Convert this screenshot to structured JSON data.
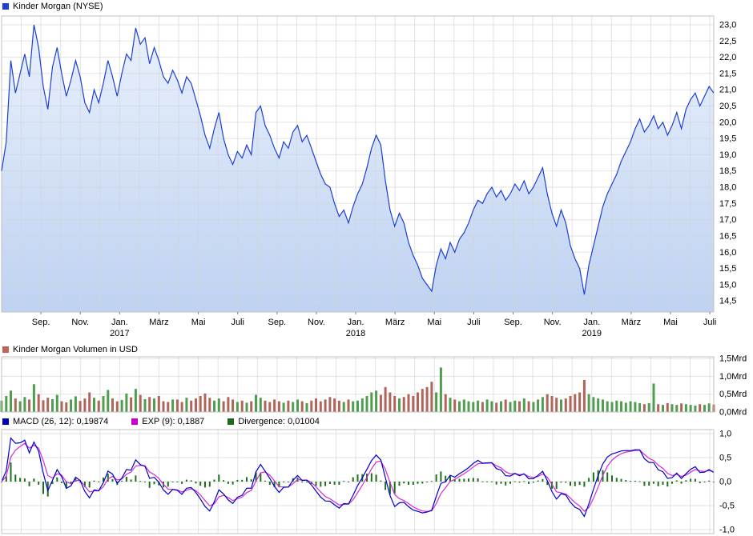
{
  "price_section": {
    "title": "Kinder Morgan (NYSE)"
  },
  "volume_section": {
    "title": "Kinder Morgan Volumen in USD"
  },
  "macd_section": {
    "macd_label": "MACD (26, 12): 0,19874",
    "exp_label": "EXP (9): 0,1887",
    "divergence_label": "Divergence: 0,01004"
  },
  "colors": {
    "price_line": "#1c3fd4",
    "price_marker": "#1c3fd4",
    "price_fill_top": "#eaf1fc",
    "price_fill_bottom": "#bed2f2",
    "grid": "#d4d4d4",
    "border": "#c0c0c0",
    "tick": "#808080",
    "volume_marker": "#c0645a",
    "volume_up": "#4f9d4f",
    "volume_down": "#b0645a",
    "macd_line": "#0000cc",
    "signal_line": "#d42bd4",
    "divergence_bar": "#1c701c",
    "macd_marker": "#0000bb",
    "exp_marker": "#cc00cc",
    "divergence_marker": "#1a6b1a"
  },
  "chart_data": [
    {
      "type": "area",
      "title": "Kinder Morgan (NYSE)",
      "ylabel": "",
      "ylim": [
        14.5,
        23.0
      ],
      "months_total": 36.2,
      "y_tick_values": [
        23.0,
        22.5,
        22.0,
        21.5,
        21.0,
        20.5,
        20.0,
        19.5,
        19.0,
        18.5,
        18.0,
        17.5,
        17.0,
        16.5,
        16.0,
        15.5,
        15.0,
        14.5
      ],
      "y_tick_labels": [
        "23,0",
        "22,5",
        "22,0",
        "21,5",
        "21,0",
        "20,5",
        "20,0",
        "19,5",
        "19,0",
        "18,5",
        "18,0",
        "17,5",
        "17,0",
        "16,5",
        "16,0",
        "15,5",
        "15,0",
        "14,5"
      ],
      "x_ticks": [
        {
          "m": 2,
          "label": "Sep."
        },
        {
          "m": 4,
          "label": "Nov."
        },
        {
          "m": 6,
          "label": "Jan."
        },
        {
          "m": 8,
          "label": "März"
        },
        {
          "m": 10,
          "label": "Mai"
        },
        {
          "m": 12,
          "label": "Juli"
        },
        {
          "m": 14,
          "label": "Sep."
        },
        {
          "m": 16,
          "label": "Nov."
        },
        {
          "m": 18,
          "label": "Jan."
        },
        {
          "m": 20,
          "label": "März"
        },
        {
          "m": 22,
          "label": "Mai"
        },
        {
          "m": 24,
          "label": "Juli"
        },
        {
          "m": 26,
          "label": "Sep."
        },
        {
          "m": 28,
          "label": "Nov."
        },
        {
          "m": 30,
          "label": "Jan."
        },
        {
          "m": 32,
          "label": "März"
        },
        {
          "m": 34,
          "label": "Mai"
        },
        {
          "m": 36,
          "label": "Juli"
        }
      ],
      "year_ticks": [
        {
          "m": 6,
          "label": "2017"
        },
        {
          "m": 18,
          "label": "2018"
        },
        {
          "m": 30,
          "label": "2019"
        }
      ],
      "values": [
        18.5,
        19.4,
        21.9,
        20.9,
        21.5,
        22.1,
        21.4,
        23.0,
        22.3,
        21.1,
        20.4,
        21.7,
        22.3,
        21.5,
        20.8,
        21.3,
        21.9,
        21.4,
        20.6,
        20.3,
        21.0,
        20.6,
        21.2,
        21.9,
        21.4,
        20.8,
        21.5,
        22.1,
        21.9,
        22.9,
        22.4,
        22.6,
        21.8,
        22.3,
        21.9,
        21.4,
        21.2,
        21.6,
        21.3,
        20.9,
        21.4,
        21.2,
        20.7,
        20.2,
        19.6,
        19.2,
        19.8,
        20.3,
        19.5,
        19.0,
        18.7,
        19.1,
        18.9,
        19.3,
        19.0,
        20.3,
        20.5,
        19.9,
        19.6,
        19.2,
        18.9,
        19.4,
        19.2,
        19.7,
        19.9,
        19.4,
        19.6,
        19.2,
        18.8,
        18.4,
        18.1,
        18.0,
        17.5,
        17.1,
        17.3,
        16.9,
        17.4,
        17.8,
        18.1,
        18.6,
        19.2,
        19.6,
        19.3,
        18.2,
        17.3,
        16.8,
        17.2,
        16.9,
        16.3,
        15.9,
        15.6,
        15.2,
        15.0,
        14.8,
        15.6,
        16.1,
        15.8,
        16.3,
        16.0,
        16.4,
        16.6,
        16.9,
        17.3,
        17.6,
        17.5,
        17.8,
        18.0,
        17.7,
        17.9,
        17.6,
        17.8,
        18.1,
        17.9,
        18.2,
        17.8,
        18.0,
        18.3,
        18.6,
        17.8,
        17.2,
        16.8,
        17.3,
        16.9,
        16.2,
        15.8,
        15.5,
        14.7,
        15.6,
        16.2,
        16.8,
        17.4,
        17.8,
        18.1,
        18.4,
        18.8,
        19.1,
        19.4,
        19.8,
        20.1,
        19.7,
        19.9,
        20.2,
        19.8,
        20.0,
        19.6,
        19.9,
        20.3,
        19.8,
        20.4,
        20.7,
        20.9,
        20.5,
        20.8,
        21.1,
        20.9
      ]
    },
    {
      "type": "bar",
      "title": "Kinder Morgan Volumen in USD",
      "unit": "Mrd",
      "ylim": [
        0,
        1.5
      ],
      "y_tick_values": [
        1.5,
        1.0,
        0.5,
        0.0
      ],
      "y_tick_labels": [
        "1,5Mrd",
        "1,0Mrd",
        "0,5Mrd",
        "0,0Mrd"
      ],
      "values": [
        0.32,
        0.45,
        0.6,
        0.38,
        0.3,
        0.42,
        0.35,
        0.78,
        0.5,
        0.33,
        0.4,
        0.36,
        0.48,
        0.3,
        0.27,
        0.35,
        0.44,
        0.31,
        0.38,
        0.55,
        0.4,
        0.32,
        0.45,
        0.62,
        0.38,
        0.3,
        0.34,
        0.52,
        0.41,
        0.65,
        0.48,
        0.36,
        0.42,
        0.38,
        0.45,
        0.3,
        0.28,
        0.35,
        0.35,
        0.28,
        0.4,
        0.32,
        0.38,
        0.45,
        0.52,
        0.4,
        0.32,
        0.38,
        0.3,
        0.42,
        0.35,
        0.28,
        0.32,
        0.26,
        0.3,
        0.48,
        0.4,
        0.32,
        0.28,
        0.35,
        0.3,
        0.26,
        0.32,
        0.28,
        0.35,
        0.3,
        0.25,
        0.32,
        0.38,
        0.3,
        0.35,
        0.42,
        0.38,
        0.32,
        0.28,
        0.35,
        0.3,
        0.32,
        0.38,
        0.45,
        0.55,
        0.6,
        0.48,
        0.7,
        0.55,
        0.45,
        0.38,
        0.42,
        0.5,
        0.45,
        0.55,
        0.65,
        0.7,
        0.85,
        0.55,
        1.25,
        0.5,
        0.4,
        0.35,
        0.3,
        0.35,
        0.3,
        0.28,
        0.32,
        0.28,
        0.35,
        0.3,
        0.26,
        0.3,
        0.35,
        0.28,
        0.32,
        0.3,
        0.38,
        0.3,
        0.28,
        0.35,
        0.42,
        0.5,
        0.45,
        0.4,
        0.35,
        0.38,
        0.45,
        0.5,
        0.55,
        0.9,
        0.5,
        0.42,
        0.38,
        0.35,
        0.3,
        0.28,
        0.32,
        0.3,
        0.26,
        0.3,
        0.28,
        0.25,
        0.22,
        0.25,
        0.8,
        0.22,
        0.2,
        0.25,
        0.22,
        0.2,
        0.24,
        0.22,
        0.2,
        0.18,
        0.22,
        0.2,
        0.24,
        0.21
      ]
    },
    {
      "type": "line",
      "title": "MACD (26, 12) / EXP (9) / Divergence",
      "ylim": [
        -1.0,
        1.0
      ],
      "y_tick_values": [
        1.0,
        0.5,
        0.0,
        -0.5,
        -1.0
      ],
      "y_tick_labels": [
        "1,0",
        "0,5",
        "0,0",
        "-0,5",
        "-1,0"
      ],
      "legend": [
        "MACD (26, 12): 0,19874",
        "EXP (9): 0,1887",
        "Divergence: 0,01004"
      ],
      "current_values": {
        "macd": 0.19874,
        "exp": 0.1887,
        "divergence": 0.01004
      }
    }
  ]
}
